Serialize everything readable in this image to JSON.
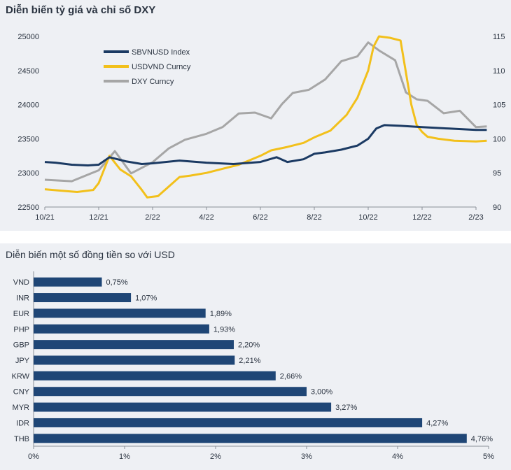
{
  "colors": {
    "sbv": "#1b3a63",
    "usdvnd": "#f2c01b",
    "dxy": "#a6a6a6",
    "bar": "#1f4676",
    "panel_bg": "#eef0f4"
  },
  "chart_data": [
    {
      "type": "line",
      "title": "Diễn biến tỷ giá và chỉ số DXY",
      "x_labels": [
        "10/21",
        "12/21",
        "2/22",
        "4/22",
        "6/22",
        "8/22",
        "10/22",
        "12/22",
        "2/23"
      ],
      "ylim_left": [
        22500,
        25000
      ],
      "yticks_left": [
        "25000",
        "24500",
        "24000",
        "23500",
        "23000",
        "22500"
      ],
      "ylim_right": [
        90,
        115
      ],
      "yticks_right": [
        "115",
        "110",
        "105",
        "100",
        "95",
        "90"
      ],
      "legend": {
        "position": "top-left",
        "entries": [
          "SBVNUSD Index",
          "USDVND Curncy",
          "DXY Curncy"
        ]
      },
      "series": [
        {
          "name": "SBVNUSD Index",
          "axis": "left",
          "x": [
            0,
            0.2,
            0.5,
            0.8,
            1.0,
            1.2,
            1.5,
            1.8,
            2.0,
            2.5,
            3.0,
            3.5,
            4.0,
            4.3,
            4.5,
            4.8,
            5.0,
            5.2,
            5.5,
            5.8,
            6.0,
            6.1,
            6.15,
            6.3,
            6.6,
            7.0,
            7.5,
            8.0,
            8.2
          ],
          "values": [
            23160,
            23150,
            23120,
            23110,
            23120,
            23230,
            23170,
            23130,
            23140,
            23180,
            23150,
            23130,
            23160,
            23230,
            23160,
            23200,
            23280,
            23300,
            23340,
            23400,
            23500,
            23600,
            23650,
            23700,
            23690,
            23670,
            23650,
            23630,
            23630
          ]
        },
        {
          "name": "USDVND Curncy",
          "axis": "left",
          "x": [
            0,
            0.3,
            0.6,
            0.9,
            1.0,
            1.1,
            1.2,
            1.4,
            1.6,
            1.8,
            1.9,
            2.1,
            2.3,
            2.5,
            2.7,
            3.0,
            3.3,
            3.6,
            4.0,
            4.2,
            4.5,
            4.8,
            5.0,
            5.3,
            5.6,
            5.8,
            6.0,
            6.1,
            6.2,
            6.4,
            6.6,
            6.8,
            6.9,
            7.0,
            7.1,
            7.3,
            7.6,
            8.0,
            8.2
          ],
          "values": [
            22760,
            22740,
            22720,
            22750,
            22850,
            23050,
            23250,
            23050,
            22950,
            22750,
            22640,
            22660,
            22800,
            22940,
            22960,
            23000,
            23060,
            23120,
            23250,
            23330,
            23380,
            23440,
            23520,
            23620,
            23850,
            24100,
            24500,
            24850,
            25000,
            24980,
            24940,
            24000,
            23700,
            23600,
            23530,
            23500,
            23470,
            23460,
            23470
          ]
        },
        {
          "name": "DXY Curncy",
          "axis": "right",
          "x": [
            0,
            0.5,
            1.0,
            1.3,
            1.6,
            2.0,
            2.3,
            2.6,
            3.0,
            3.3,
            3.6,
            3.9,
            4.2,
            4.4,
            4.6,
            4.9,
            5.2,
            5.5,
            5.8,
            6.0,
            6.2,
            6.5,
            6.7,
            6.9,
            7.1,
            7.4,
            7.7,
            8.0,
            8.2
          ],
          "values": [
            94,
            93.3,
            96,
            98,
            95.8,
            96,
            98.5,
            99.5,
            100.5,
            102.5,
            103.5,
            104.5,
            102.2,
            105,
            106.5,
            107.2,
            109.5,
            111,
            112.5,
            113.2,
            113,
            111.5,
            107,
            106.5,
            105,
            104,
            103.2,
            102,
            101.8
          ]
        }
      ]
    },
    {
      "type": "bar",
      "orientation": "horizontal",
      "title": "Diễn biến một số đồng tiền so với USD",
      "categories": [
        "VND",
        "INR",
        "EUR",
        "PHP",
        "GBP",
        "JPY",
        "KRW",
        "CNY",
        "MYR",
        "IDR",
        "THB"
      ],
      "values": [
        0.75,
        1.07,
        1.89,
        1.93,
        2.2,
        2.21,
        2.66,
        3.0,
        3.27,
        4.27,
        4.76
      ],
      "value_labels": [
        "0,75%",
        "1,07%",
        "1,89%",
        "1,93%",
        "2,20%",
        "2,21%",
        "2,66%",
        "3,00%",
        "3,27%",
        "4,27%",
        "4,76%"
      ],
      "xlim": [
        0,
        5
      ],
      "xticks": [
        "0%",
        "1%",
        "2%",
        "3%",
        "4%",
        "5%"
      ]
    }
  ]
}
